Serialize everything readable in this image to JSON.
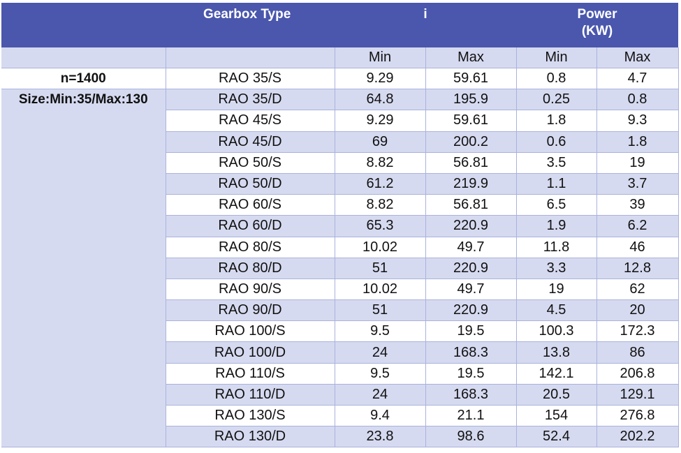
{
  "header": {
    "gearbox_type": "Gearbox Type",
    "ratio": "i",
    "power_line1": "Power",
    "power_line2": "(KW)"
  },
  "subheader": {
    "i_min": "Min",
    "i_max": "Max",
    "p_min": "Min",
    "p_max": "Max"
  },
  "left": {
    "speed": "n=1400",
    "size": "Size:Min:35/Max:130"
  },
  "rows": [
    {
      "type": "RAO 35/S",
      "i_min": "9.29",
      "i_max": "59.61",
      "p_min": "0.8",
      "p_max": "4.7"
    },
    {
      "type": "RAO 35/D",
      "i_min": "64.8",
      "i_max": "195.9",
      "p_min": "0.25",
      "p_max": "0.8"
    },
    {
      "type": "RAO 45/S",
      "i_min": "9.29",
      "i_max": "59.61",
      "p_min": "1.8",
      "p_max": "9.3"
    },
    {
      "type": "RAO 45/D",
      "i_min": "69",
      "i_max": "200.2",
      "p_min": "0.6",
      "p_max": "1.8"
    },
    {
      "type": "RAO 50/S",
      "i_min": "8.82",
      "i_max": "56.81",
      "p_min": "3.5",
      "p_max": "19"
    },
    {
      "type": "RAO 50/D",
      "i_min": "61.2",
      "i_max": "219.9",
      "p_min": "1.1",
      "p_max": "3.7"
    },
    {
      "type": "RAO 60/S",
      "i_min": "8.82",
      "i_max": "56.81",
      "p_min": "6.5",
      "p_max": "39"
    },
    {
      "type": "RAO 60/D",
      "i_min": "65.3",
      "i_max": "220.9",
      "p_min": "1.9",
      "p_max": "6.2"
    },
    {
      "type": "RAO 80/S",
      "i_min": "10.02",
      "i_max": "49.7",
      "p_min": "11.8",
      "p_max": "46"
    },
    {
      "type": "RAO 80/D",
      "i_min": "51",
      "i_max": "220.9",
      "p_min": "3.3",
      "p_max": "12.8"
    },
    {
      "type": "RAO 90/S",
      "i_min": "10.02",
      "i_max": "49.7",
      "p_min": "19",
      "p_max": "62"
    },
    {
      "type": "RAO 90/D",
      "i_min": "51",
      "i_max": "220.9",
      "p_min": "4.5",
      "p_max": "20"
    },
    {
      "type": "RAO 100/S",
      "i_min": "9.5",
      "i_max": "19.5",
      "p_min": "100.3",
      "p_max": "172.3"
    },
    {
      "type": "RAO 100/D",
      "i_min": "24",
      "i_max": "168.3",
      "p_min": "13.8",
      "p_max": "86"
    },
    {
      "type": "RAO 110/S",
      "i_min": "9.5",
      "i_max": "19.5",
      "p_min": "142.1",
      "p_max": "206.8"
    },
    {
      "type": "RAO 110/D",
      "i_min": "24",
      "i_max": "168.3",
      "p_min": "20.5",
      "p_max": "129.1"
    },
    {
      "type": "RAO 130/S",
      "i_min": "9.4",
      "i_max": "21.1",
      "p_min": "154",
      "p_max": "276.8"
    },
    {
      "type": "RAO 130/D",
      "i_min": "23.8",
      "i_max": "98.6",
      "p_min": "52.4",
      "p_max": "202.2"
    }
  ],
  "colors": {
    "header_bg": "#4a57ad",
    "band_bg": "#d6daf0",
    "row_light": "#ffffff"
  }
}
